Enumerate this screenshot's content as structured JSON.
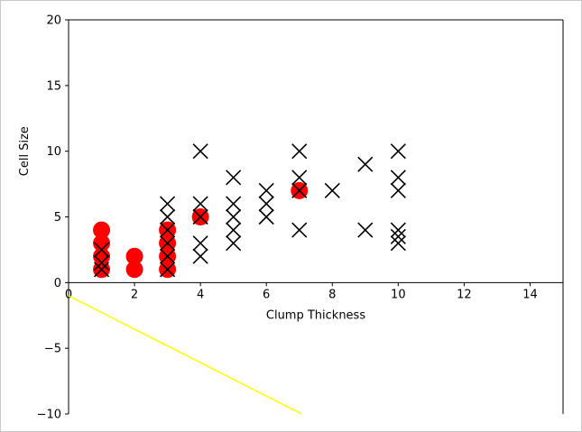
{
  "chart_data": {
    "type": "scatter",
    "xlabel": "Clump Thickness",
    "ylabel": "Cell Size",
    "xlim": [
      0,
      15
    ],
    "ylim": [
      -10,
      20
    ],
    "xticks": [
      0,
      2,
      4,
      6,
      8,
      10,
      12,
      14
    ],
    "yticks": [
      -10,
      -5,
      0,
      5,
      10,
      15,
      20
    ],
    "grid": false,
    "series": [
      {
        "marker": "circle",
        "color": "#ff0000",
        "points": [
          [
            1,
            1
          ],
          [
            1,
            2
          ],
          [
            1,
            3
          ],
          [
            1,
            4
          ],
          [
            2,
            1
          ],
          [
            2,
            2
          ],
          [
            3,
            1
          ],
          [
            3,
            2
          ],
          [
            3,
            3
          ],
          [
            3,
            4
          ],
          [
            4,
            5
          ],
          [
            7,
            7
          ]
        ]
      },
      {
        "marker": "x",
        "color": "#000000",
        "points": [
          [
            1,
            1
          ],
          [
            1,
            1.5
          ],
          [
            1,
            2.5
          ],
          [
            3,
            1
          ],
          [
            3,
            2
          ],
          [
            3,
            3
          ],
          [
            3,
            4
          ],
          [
            3,
            5
          ],
          [
            3,
            6
          ],
          [
            4,
            2
          ],
          [
            4,
            3
          ],
          [
            4,
            5
          ],
          [
            4,
            6
          ],
          [
            4,
            10
          ],
          [
            5,
            3
          ],
          [
            5,
            4
          ],
          [
            5,
            5
          ],
          [
            5,
            6
          ],
          [
            5,
            8
          ],
          [
            6,
            5
          ],
          [
            6,
            6
          ],
          [
            6,
            7
          ],
          [
            7,
            4
          ],
          [
            7,
            7
          ],
          [
            7,
            8
          ],
          [
            7,
            10
          ],
          [
            8,
            7
          ],
          [
            9,
            4
          ],
          [
            9,
            9
          ],
          [
            10,
            3
          ],
          [
            10,
            3.5
          ],
          [
            10,
            4
          ],
          [
            10,
            7
          ],
          [
            10,
            8
          ],
          [
            10,
            10
          ]
        ]
      }
    ],
    "lines": [
      {
        "color": "#ffff00",
        "x": [
          0,
          7.07
        ],
        "y": [
          -1,
          -10
        ]
      }
    ]
  }
}
